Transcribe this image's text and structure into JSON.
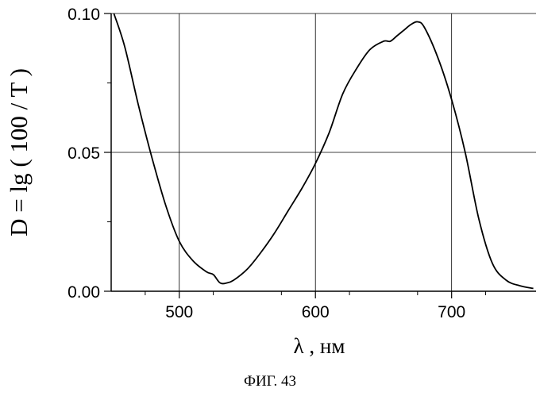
{
  "chart_data": {
    "type": "line",
    "xlabel": "λ , нм",
    "ylabel": "D = lg ( 100 / T )",
    "xlim": [
      450,
      762
    ],
    "ylim": [
      0.0,
      0.1
    ],
    "xticks": [
      500,
      600,
      700
    ],
    "xtick_labels": [
      "500",
      "600",
      "700"
    ],
    "yticks": [
      0.0,
      0.05,
      0.1
    ],
    "ytick_labels": [
      "0.00",
      "0.05",
      "0.10"
    ],
    "grid": true,
    "series": [
      {
        "color": "#000000",
        "x": [
          452,
          460,
          470,
          480,
          490,
          500,
          510,
          520,
          525,
          530,
          535,
          540,
          550,
          560,
          570,
          580,
          590,
          600,
          610,
          620,
          630,
          640,
          650,
          655,
          660,
          665,
          670,
          675,
          680,
          690,
          700,
          710,
          720,
          730,
          740,
          750,
          760
        ],
        "y": [
          0.1,
          0.088,
          0.067,
          0.048,
          0.031,
          0.018,
          0.011,
          0.007,
          0.006,
          0.003,
          0.003,
          0.004,
          0.008,
          0.014,
          0.021,
          0.029,
          0.037,
          0.046,
          0.057,
          0.071,
          0.08,
          0.087,
          0.09,
          0.09,
          0.092,
          0.094,
          0.096,
          0.097,
          0.095,
          0.084,
          0.069,
          0.05,
          0.026,
          0.01,
          0.004,
          0.002,
          0.001
        ]
      }
    ]
  },
  "caption": "ФИГ. 43"
}
